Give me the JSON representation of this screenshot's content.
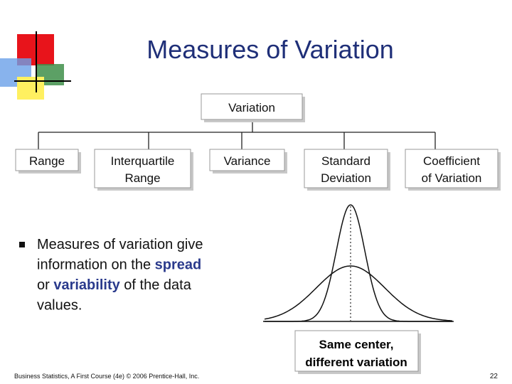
{
  "header": {
    "title": "Measures of Variation"
  },
  "tree": {
    "root": "Variation",
    "children": [
      {
        "lines": [
          "Range"
        ]
      },
      {
        "lines": [
          "Interquartile",
          "Range"
        ]
      },
      {
        "lines": [
          "Variance"
        ]
      },
      {
        "lines": [
          "Standard",
          "Deviation"
        ]
      },
      {
        "lines": [
          "Coefficient",
          "of Variation"
        ]
      }
    ]
  },
  "bullet": {
    "lines": [
      [
        {
          "text": "Measures of variation give"
        }
      ],
      [
        {
          "text": "information on the "
        },
        {
          "text": "spread",
          "emphasis": true
        }
      ],
      [
        {
          "text": "or "
        },
        {
          "text": "variability",
          "emphasis": true
        },
        {
          "text": " of the data"
        }
      ],
      [
        {
          "text": "values."
        }
      ]
    ]
  },
  "figure": {
    "caption": [
      "Same center,",
      "different variation"
    ]
  },
  "footer": {
    "source": "Business Statistics, A First Course (4e) © 2006 Prentice-Hall, Inc.",
    "page": "22"
  }
}
